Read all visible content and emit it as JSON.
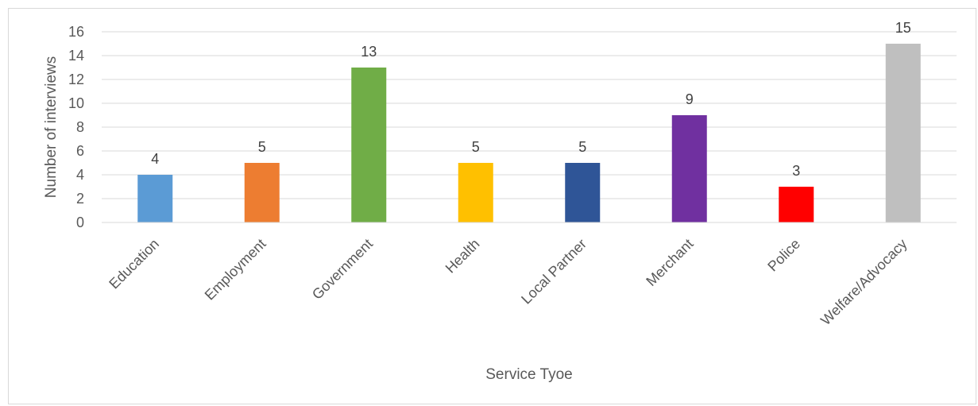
{
  "chart_data": {
    "type": "bar",
    "categories": [
      "Education",
      "Employment",
      "Government",
      "Health",
      "Local Partner",
      "Merchant",
      "Police",
      "Welfare/Advocacy"
    ],
    "values": [
      4,
      5,
      13,
      5,
      5,
      9,
      3,
      15
    ],
    "colors": [
      "#5b9bd5",
      "#ed7d31",
      "#70ad47",
      "#ffc000",
      "#2f5597",
      "#7030a0",
      "#ff0000",
      "#bfbfbf"
    ],
    "title": "",
    "xlabel": "Service Tyoe",
    "ylabel": "Number of interviews",
    "ylim": [
      0,
      16
    ],
    "yticks": [
      0,
      2,
      4,
      6,
      8,
      10,
      12,
      14,
      16
    ],
    "grid": true,
    "gridline_color": "#d9d9d9",
    "data_labels": true
  }
}
